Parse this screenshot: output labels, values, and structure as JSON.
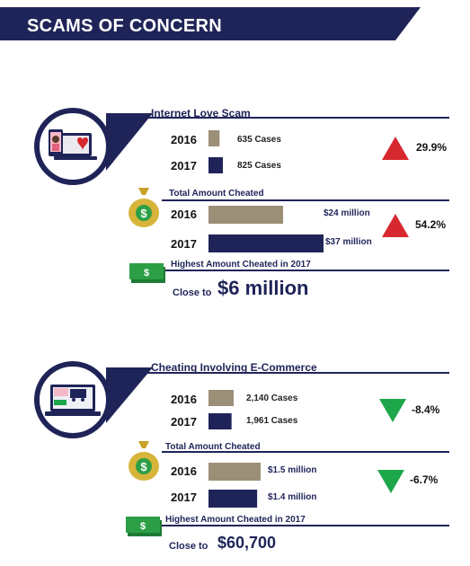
{
  "header": {
    "title": "SCAMS OF CONCERN"
  },
  "colors": {
    "navy": "#1f2458",
    "tan": "#9b8f78",
    "up": "#d7282f",
    "down": "#1da64a",
    "money": "#2c9f46",
    "bag": "#c9a227"
  },
  "icons": {
    "love_scam": "phone-laptop-heart-icon",
    "ecommerce": "laptop-shop-icon",
    "money_bag": "money-bag-icon",
    "cash": "cash-stack-icon"
  },
  "love_scam": {
    "title": "Internet Love Scam",
    "cases": [
      {
        "year": "2016",
        "value": 635,
        "label": "635 Cases"
      },
      {
        "year": "2017",
        "value": 825,
        "label": "825 Cases"
      }
    ],
    "cases_change": "29.9%",
    "cases_trend": "up",
    "amount_title": "Total Amount Cheated",
    "amounts": [
      {
        "year": "2016",
        "value": 24,
        "label": "$24 million"
      },
      {
        "year": "2017",
        "value": 37,
        "label": "$37 million"
      }
    ],
    "amount_change": "54.2%",
    "amount_trend": "up",
    "highest_title": "Highest Amount Cheated in 2017",
    "close_to": "Close to",
    "highest_value": "$6 million"
  },
  "ecommerce": {
    "title": "Cheating Involving E-Commerce",
    "cases": [
      {
        "year": "2016",
        "value": 2140,
        "label": "2,140 Cases"
      },
      {
        "year": "2017",
        "value": 1961,
        "label": "1,961 Cases"
      }
    ],
    "cases_change": "-8.4%",
    "cases_trend": "down",
    "amount_title": "Total Amount Cheated",
    "amounts": [
      {
        "year": "2016",
        "value": 1.5,
        "label": "$1.5 million"
      },
      {
        "year": "2017",
        "value": 1.4,
        "label": "$1.4 million"
      }
    ],
    "amount_change": "-6.7%",
    "amount_trend": "down",
    "highest_title": "Highest Amount Cheated in 2017",
    "close_to": "Close to",
    "highest_value": "$60,700"
  },
  "chart_data": [
    {
      "type": "bar",
      "title": "Internet Love Scam",
      "categories": [
        "2016",
        "2017"
      ],
      "values": [
        635,
        825
      ],
      "data_labels": [
        "635 Cases",
        "825 Cases"
      ],
      "annotation": "29.9%"
    },
    {
      "type": "bar",
      "title": "Total Amount Cheated",
      "categories": [
        "2016",
        "2017"
      ],
      "values": [
        24,
        37
      ],
      "data_labels": [
        "$24 million",
        "$37 million"
      ],
      "annotation": "54.2%"
    },
    {
      "type": "bar",
      "title": "Cheating Involving E-Commerce",
      "categories": [
        "2016",
        "2017"
      ],
      "values": [
        2140,
        1961
      ],
      "data_labels": [
        "2,140 Cases",
        "1,961 Cases"
      ],
      "annotation": "-8.4%"
    },
    {
      "type": "bar",
      "title": "Total Amount Cheated",
      "categories": [
        "2016",
        "2017"
      ],
      "values": [
        1.5,
        1.4
      ],
      "data_labels": [
        "$1.5 million",
        "$1.4 million"
      ],
      "annotation": "-6.7%"
    }
  ]
}
